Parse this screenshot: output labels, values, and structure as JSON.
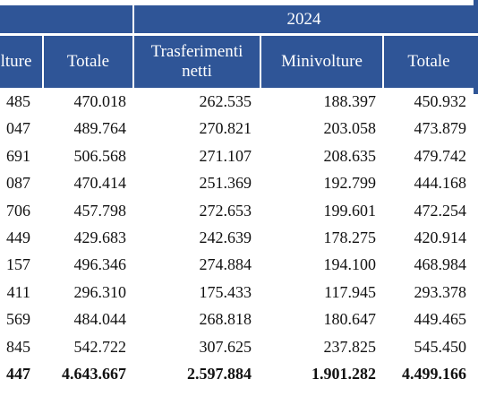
{
  "header": {
    "year": "2024",
    "columns": [
      "lture",
      "Totale",
      "Trasferimenti netti",
      "Minivolture",
      "Totale"
    ]
  },
  "rows": [
    [
      "485",
      "470.018",
      "262.535",
      "188.397",
      "450.932"
    ],
    [
      "047",
      "489.764",
      "270.821",
      "203.058",
      "473.879"
    ],
    [
      "691",
      "506.568",
      "271.107",
      "208.635",
      "479.742"
    ],
    [
      "087",
      "470.414",
      "251.369",
      "192.799",
      "444.168"
    ],
    [
      "706",
      "457.798",
      "272.653",
      "199.601",
      "472.254"
    ],
    [
      "449",
      "429.683",
      "242.639",
      "178.275",
      "420.914"
    ],
    [
      "157",
      "496.346",
      "274.884",
      "194.100",
      "468.984"
    ],
    [
      "411",
      "296.310",
      "175.433",
      "117.945",
      "293.378"
    ],
    [
      "569",
      "484.044",
      "268.818",
      "180.647",
      "449.465"
    ],
    [
      "845",
      "542.722",
      "307.625",
      "237.825",
      "545.450"
    ]
  ],
  "total_row": [
    "447",
    "4.643.667",
    "2.597.884",
    "1.901.282",
    "4.499.166"
  ]
}
